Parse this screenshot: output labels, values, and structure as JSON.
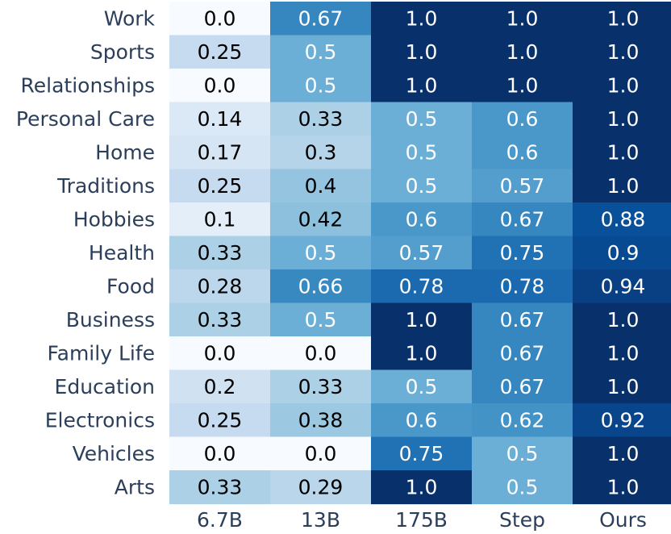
{
  "chart_data": {
    "type": "heatmap",
    "columns": [
      "6.7B",
      "13B",
      "175B",
      "Step",
      "Ours"
    ],
    "rows": [
      "Work",
      "Sports",
      "Relationships",
      "Personal Care",
      "Home",
      "Traditions",
      "Hobbies",
      "Health",
      "Food",
      "Business",
      "Family Life",
      "Education",
      "Electronics",
      "Vehicles",
      "Arts"
    ],
    "value_labels": [
      [
        "0.0",
        "0.67",
        "1.0",
        "1.0",
        "1.0"
      ],
      [
        "0.25",
        "0.5",
        "1.0",
        "1.0",
        "1.0"
      ],
      [
        "0.0",
        "0.5",
        "1.0",
        "1.0",
        "1.0"
      ],
      [
        "0.14",
        "0.33",
        "0.5",
        "0.6",
        "1.0"
      ],
      [
        "0.17",
        "0.3",
        "0.5",
        "0.6",
        "1.0"
      ],
      [
        "0.25",
        "0.4",
        "0.5",
        "0.57",
        "1.0"
      ],
      [
        "0.1",
        "0.42",
        "0.6",
        "0.67",
        "0.88"
      ],
      [
        "0.33",
        "0.5",
        "0.57",
        "0.75",
        "0.9"
      ],
      [
        "0.28",
        "0.66",
        "0.78",
        "0.78",
        "0.94"
      ],
      [
        "0.33",
        "0.5",
        "1.0",
        "0.67",
        "1.0"
      ],
      [
        "0.0",
        "0.0",
        "1.0",
        "0.67",
        "1.0"
      ],
      [
        "0.2",
        "0.33",
        "0.5",
        "0.67",
        "1.0"
      ],
      [
        "0.25",
        "0.38",
        "0.6",
        "0.62",
        "0.92"
      ],
      [
        "0.0",
        "0.0",
        "0.75",
        "0.5",
        "1.0"
      ],
      [
        "0.33",
        "0.29",
        "1.0",
        "0.5",
        "1.0"
      ]
    ],
    "colormap": "Blues",
    "color_range": [
      0,
      1
    ],
    "colors": {
      "low": "#f7fbff",
      "high": "#08306b",
      "light_text": "#ffffff",
      "dark_text": "#000000",
      "axis_text": "#2b3e5a"
    },
    "legend": "none",
    "grid": false
  }
}
